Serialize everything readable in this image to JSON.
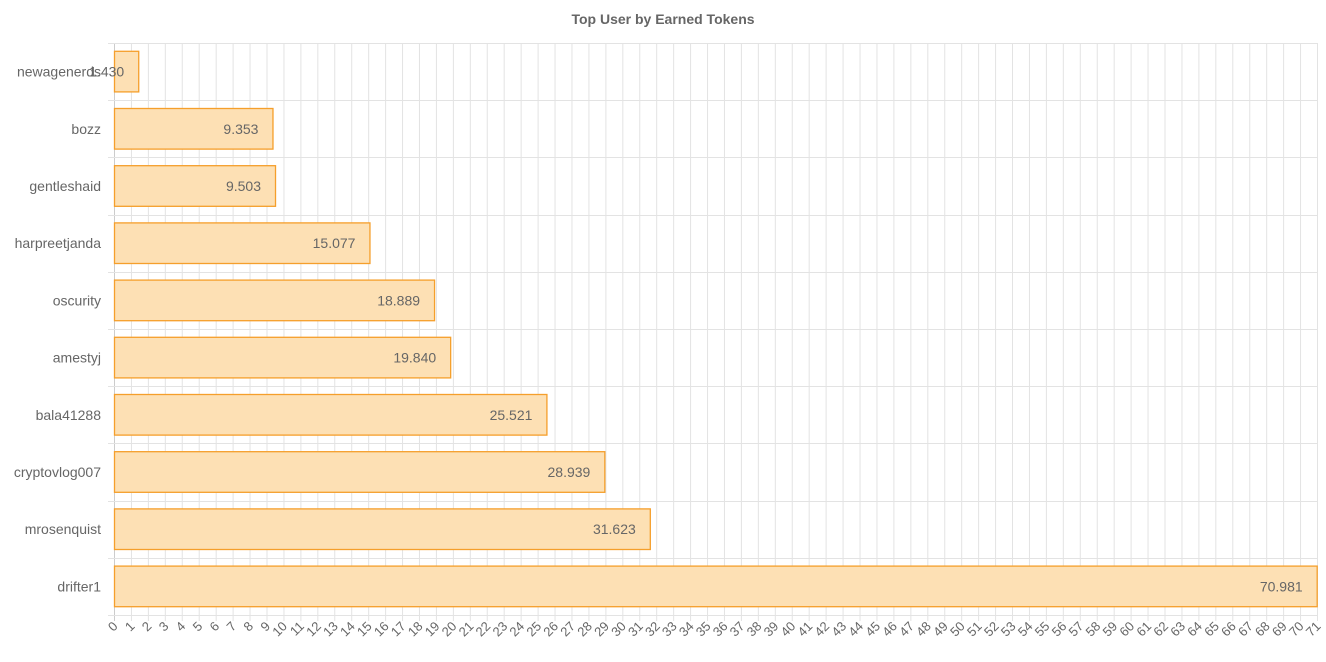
{
  "chart_data": {
    "type": "bar",
    "orientation": "horizontal",
    "title": "Top User by Earned Tokens",
    "categories": [
      "newagenerds",
      "bozz",
      "gentleshaid",
      "harpreetjanda",
      "oscurity",
      "amestyj",
      "bala41288",
      "cryptovlog007",
      "mrosenquist",
      "drifter1"
    ],
    "values": [
      1.43,
      9.353,
      9.503,
      15.077,
      18.889,
      19.84,
      25.521,
      28.939,
      31.623,
      70.981
    ],
    "value_labels": [
      "1.430",
      "9.353",
      "9.503",
      "15.077",
      "18.889",
      "19.840",
      "25.521",
      "28.939",
      "31.623",
      "70.981"
    ],
    "xlim": [
      0,
      71
    ],
    "x_tick_step": 1,
    "grid": true,
    "colors": {
      "bar_fill": "#fde0b4",
      "bar_stroke": "#f59f2b",
      "grid": "#e3e3e3",
      "axis": "#cccccc",
      "text": "#666666"
    }
  }
}
